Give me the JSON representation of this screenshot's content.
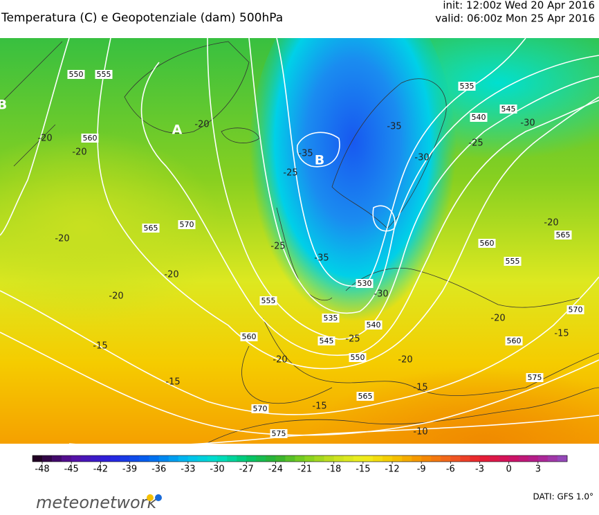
{
  "header": {
    "title": "Temperatura (C) e Geopotenziale (dam) 500hPa",
    "init": "init: 12:00z Wed 20 Apr 2016",
    "valid": "valid: 06:00z Mon 25 Apr 2016"
  },
  "map": {
    "geopotential_labels": [
      "550",
      "555",
      "560",
      "565",
      "570",
      "555",
      "560",
      "530",
      "535",
      "540",
      "545",
      "550",
      "565",
      "570",
      "575",
      "535",
      "540",
      "545",
      "560",
      "555",
      "565",
      "570",
      "575",
      "560"
    ],
    "temperature_labels": [
      "-20",
      "-20",
      "-20",
      "-20",
      "-20",
      "-20",
      "-15",
      "-15",
      "-20",
      "-15",
      "-15",
      "-10",
      "-20",
      "-25",
      "-30",
      "-35",
      "-35",
      "-35",
      "-30",
      "-25",
      "-30",
      "-20",
      "-20",
      "-15",
      "-25",
      "-25"
    ],
    "pressure_centers": [
      "A",
      "B",
      "B"
    ]
  },
  "colorbar": {
    "range": [
      -49,
      6
    ],
    "ticks": [
      -48,
      -45,
      -42,
      -39,
      -36,
      -33,
      -30,
      -27,
      -24,
      -21,
      -18,
      -15,
      -12,
      -9,
      -6,
      -3,
      0,
      3
    ],
    "stops": [
      {
        "value": -49,
        "color": "#1a0012"
      },
      {
        "value": -45,
        "color": "#5a10a0"
      },
      {
        "value": -41,
        "color": "#2a20e0"
      },
      {
        "value": -37,
        "color": "#0066f0"
      },
      {
        "value": -33,
        "color": "#00c0f0"
      },
      {
        "value": -30,
        "color": "#00e0c8"
      },
      {
        "value": -27,
        "color": "#00c870"
      },
      {
        "value": -24,
        "color": "#30b030"
      },
      {
        "value": -21,
        "color": "#80d020"
      },
      {
        "value": -18,
        "color": "#c8e020"
      },
      {
        "value": -15,
        "color": "#f0f020"
      },
      {
        "value": -12,
        "color": "#f5c800"
      },
      {
        "value": -9,
        "color": "#f59000"
      },
      {
        "value": -6,
        "color": "#f06020"
      },
      {
        "value": -3,
        "color": "#e82030"
      },
      {
        "value": 0,
        "color": "#d01060"
      },
      {
        "value": 3,
        "color": "#b02090"
      },
      {
        "value": 6,
        "color": "#9050c0"
      }
    ]
  },
  "footer": {
    "logo": "meteonetwork",
    "source": "DATI: GFS 1.0°"
  }
}
